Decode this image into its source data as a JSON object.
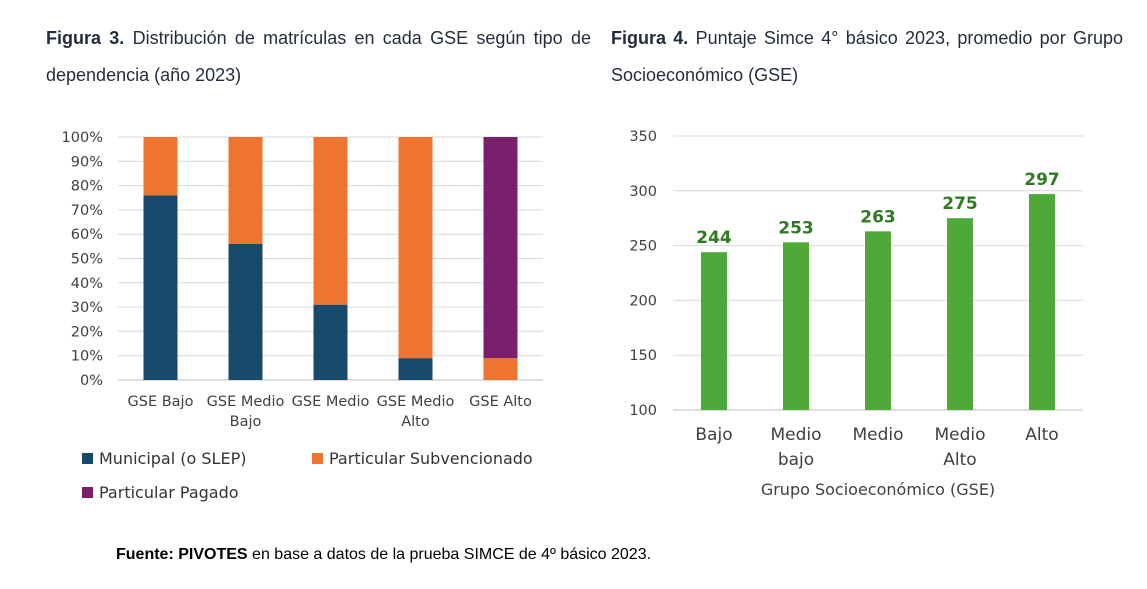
{
  "figure3": {
    "caption_label": "Figura 3.",
    "caption_text": "Distribución de matrículas en cada GSE según tipo de dependencia (año 2023)"
  },
  "figure4": {
    "caption_label": "Figura 4.",
    "caption_text": "Puntaje Simce 4° básico 2023, promedio por Grupo Socioeconómico (GSE)"
  },
  "source": {
    "label": "Fuente:",
    "org": "PIVOTES",
    "text": "en base a datos de la prueba SIMCE de 4º básico 2023."
  },
  "chart_data": [
    {
      "type": "bar",
      "stacked": true,
      "categories": [
        [
          "GSE Bajo"
        ],
        [
          "GSE Medio",
          "Bajo"
        ],
        [
          "GSE Medio"
        ],
        [
          "GSE Medio",
          "Alto"
        ],
        [
          "GSE Alto"
        ]
      ],
      "y_ticks": [
        "0%",
        "10%",
        "20%",
        "30%",
        "40%",
        "50%",
        "60%",
        "70%",
        "80%",
        "90%",
        "100%"
      ],
      "ylim": [
        0,
        100
      ],
      "grid": true,
      "legend_position": "bottom",
      "series": [
        {
          "name": "Municipal (o SLEP)",
          "color": "#16496a",
          "values": [
            76,
            56,
            31,
            9,
            0
          ]
        },
        {
          "name": "Particular Subvencionado",
          "color": "#ed7530",
          "values": [
            24,
            44,
            69,
            91,
            9
          ]
        },
        {
          "name": "Particular Pagado",
          "color": "#7a1f6c",
          "values": [
            0,
            0,
            0,
            0,
            91
          ]
        }
      ]
    },
    {
      "type": "bar",
      "categories": [
        [
          "Bajo"
        ],
        [
          "Medio",
          "bajo"
        ],
        [
          "Medio"
        ],
        [
          "Medio",
          "Alto"
        ],
        [
          "Alto"
        ]
      ],
      "values": [
        244,
        253,
        263,
        275,
        297
      ],
      "data_labels": [
        "244",
        "253",
        "263",
        "275",
        "297"
      ],
      "y_ticks": [
        "100",
        "150",
        "200",
        "250",
        "300",
        "350"
      ],
      "ylim": [
        100,
        350
      ],
      "xlabel": "Grupo Socioeconómico (GSE)",
      "grid": true,
      "bar_color": "#4fa83a",
      "label_color": "#2f7a22"
    }
  ]
}
